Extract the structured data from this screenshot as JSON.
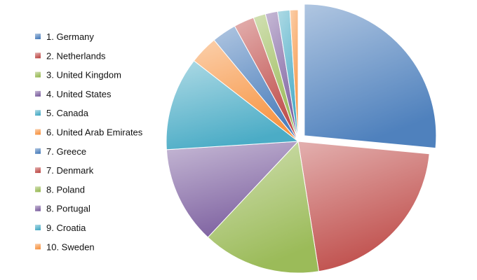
{
  "chart_data": {
    "type": "pie",
    "title": "",
    "legend_position": "left",
    "exploded_slice": "1. Germany",
    "slices": [
      {
        "label": "1. Germany",
        "value": 26.5,
        "color": "#4f81bd"
      },
      {
        "label": "2. Netherlands",
        "value": 21.0,
        "color": "#c0504d"
      },
      {
        "label": "3. United Kingdom",
        "value": 14.5,
        "color": "#9bbb59"
      },
      {
        "label": "4. United States",
        "value": 12.0,
        "color": "#8064a2"
      },
      {
        "label": "5. Canada",
        "value": 11.5,
        "color": "#4bacc6"
      },
      {
        "label": "6. United Arab Emirates",
        "value": 3.5,
        "color": "#f79646"
      },
      {
        "label": "7. Greece",
        "value": 3.0,
        "color": "#4f81bd"
      },
      {
        "label": "7. Denmark",
        "value": 2.5,
        "color": "#c0504d"
      },
      {
        "label": "8. Poland",
        "value": 1.5,
        "color": "#9bbb59"
      },
      {
        "label": "8. Portugal",
        "value": 1.5,
        "color": "#8064a2"
      },
      {
        "label": "9. Croatia",
        "value": 1.5,
        "color": "#4bacc6"
      },
      {
        "label": "10. Sweden",
        "value": 1.0,
        "color": "#f79646"
      }
    ]
  }
}
